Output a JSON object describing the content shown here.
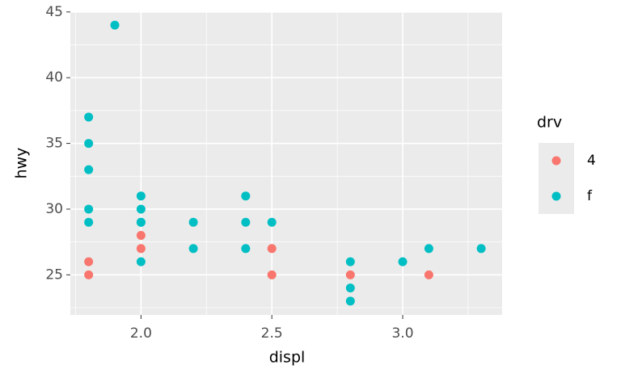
{
  "chart_data": {
    "type": "scatter",
    "x_label": "displ",
    "y_label": "hwy",
    "legend_title": "drv",
    "legend_position": "right",
    "xlim": [
      1.73,
      3.38
    ],
    "ylim": [
      21.95,
      45.05
    ],
    "xticks": [
      {
        "value": 2,
        "label": "2.0"
      },
      {
        "value": 2.5,
        "label": "2.5"
      },
      {
        "value": 3,
        "label": "3.0"
      }
    ],
    "yticks": [
      25,
      30,
      35,
      40,
      45
    ],
    "grid": true,
    "series": [
      {
        "name": "4",
        "color": "#F8766D",
        "x": [
          1.8,
          1.8,
          2.0,
          2.0,
          2.5,
          2.5,
          2.8,
          3.1
        ],
        "values": [
          26,
          25,
          28,
          27,
          27,
          25,
          25,
          25
        ]
      },
      {
        "name": "f",
        "color": "#00BFC4",
        "x": [
          1.8,
          1.8,
          1.8,
          1.8,
          1.8,
          1.9,
          2.0,
          2.0,
          2.0,
          2.0,
          2.0,
          2.2,
          2.2,
          2.4,
          2.4,
          2.4,
          2.5,
          2.8,
          2.8,
          2.8,
          3.0,
          3.1,
          3.3
        ],
        "values": [
          37,
          35,
          33,
          30,
          29,
          44,
          31,
          30,
          29,
          29,
          26,
          29,
          27,
          31,
          29,
          27,
          29,
          26,
          24,
          23,
          26,
          27,
          27
        ]
      }
    ]
  }
}
